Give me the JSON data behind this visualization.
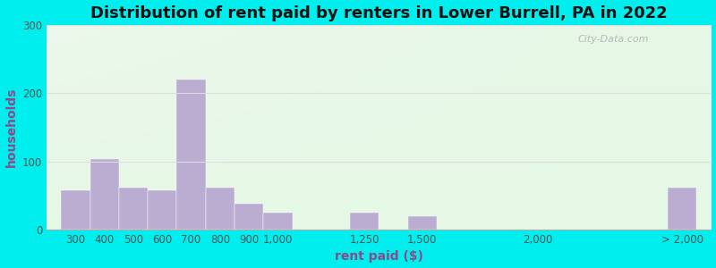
{
  "title": "Distribution of rent paid by renters in Lower Burrell, PA in 2022",
  "xlabel": "rent paid ($)",
  "ylabel": "households",
  "bar_labels": [
    "300",
    "400",
    "500",
    "600",
    "700",
    "800",
    "900",
    "1,000",
    "1,250",
    "1,500",
    "2,000",
    "> 2,000"
  ],
  "bar_values": [
    58,
    104,
    62,
    57,
    220,
    62,
    38,
    25,
    25,
    20,
    0,
    62
  ],
  "bar_color": "#bbadd1",
  "bar_edgecolor": "#bbadd1",
  "bg_outer": "#00eeee",
  "bg_plot_topleft": "#c8eec8",
  "bg_plot_topright": "#e8f5f5",
  "bg_plot_bottom": "#f0fff8",
  "yticks": [
    0,
    100,
    200,
    300
  ],
  "ylim": [
    0,
    300
  ],
  "title_fontsize": 13,
  "axis_label_fontsize": 10,
  "tick_fontsize": 8.5,
  "watermark": "City-Data.com"
}
